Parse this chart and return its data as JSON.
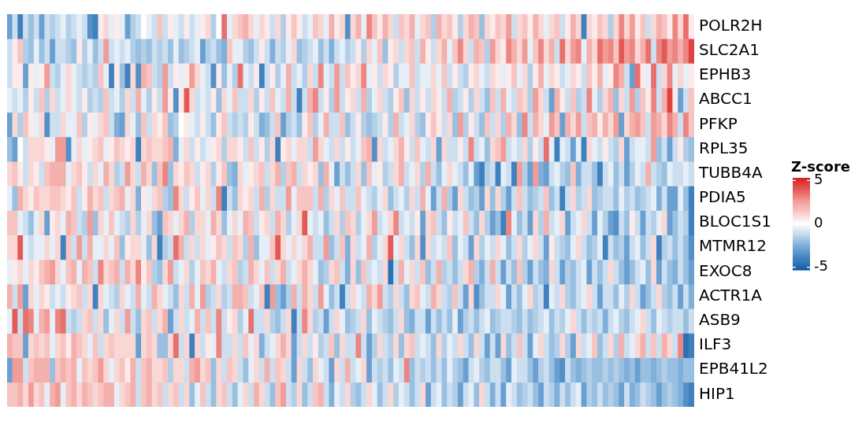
{
  "chart_data": {
    "type": "heatmap",
    "clabel": "Z-score",
    "clim": [
      -5.3,
      5.3
    ],
    "cticks": [
      -5,
      0,
      5
    ],
    "categories": [
      null,
      null,
      null,
      null,
      null,
      null,
      null,
      null,
      null,
      null,
      null,
      null,
      null,
      null,
      null,
      null,
      null,
      null,
      null,
      null,
      null,
      null,
      null,
      null,
      null,
      null,
      null,
      null,
      null,
      null,
      null,
      null,
      null,
      null,
      null,
      null,
      null,
      null,
      null,
      null,
      null,
      null,
      null,
      null,
      null,
      null,
      null,
      null,
      null,
      null,
      null,
      null,
      null,
      null,
      null,
      null,
      null,
      null,
      null,
      null,
      null,
      null,
      null,
      null,
      null,
      null,
      null,
      null,
      null,
      null,
      null,
      null,
      null,
      null,
      null,
      null,
      null,
      null,
      null,
      null,
      null,
      null,
      null,
      null,
      null,
      null,
      null,
      null,
      null,
      null,
      null,
      null,
      null,
      null,
      null,
      null,
      null,
      null,
      null,
      null,
      null,
      null,
      null,
      null,
      null,
      null,
      null,
      null,
      null,
      null,
      null,
      null,
      null,
      null,
      null,
      null,
      null,
      null,
      null,
      null,
      null,
      null,
      null,
      null,
      null,
      null,
      null,
      null
    ],
    "y_categories": [
      "POLR2H",
      "SLC2A1",
      "EPHB3",
      "ABCC1",
      "PFKP",
      "RPL35",
      "TUBB4A",
      "PDIA5",
      "BLOC1S1",
      "MTMR12",
      "EXOC8",
      "ACTR1A",
      "ASB9",
      "ILF3",
      "EPB41L2",
      "HIP1"
    ],
    "cells": [
      [
        -3,
        -1,
        -4,
        -1,
        -2,
        -1,
        -3,
        -1,
        -1.5,
        -1,
        -0.5,
        -1.5,
        -1,
        -0.5,
        -1,
        -3.5,
        -4,
        0.5,
        1,
        -0.5,
        0.5,
        -0.5,
        -3,
        -1.5,
        -1,
        0,
        -0.5,
        -1,
        1.5,
        -1,
        0.5,
        -0.5,
        -1,
        0.5,
        -1,
        -0.5,
        0.5,
        1,
        -1.5,
        0,
        3.5,
        -0.5,
        1,
        1.5,
        2,
        1,
        -0.5,
        1,
        0.5,
        -1,
        1,
        -1.5,
        0.5,
        1.5,
        0.5,
        -1,
        -0.5,
        1.5,
        1,
        -0.5,
        2,
        0.5,
        1,
        -3.5,
        1,
        2,
        -0.5,
        3,
        1.5,
        0.5,
        2,
        1,
        -1,
        1.5,
        1,
        2,
        -0.5,
        1,
        1.5,
        -1.5,
        2,
        1,
        1.5,
        0.5,
        -1.5,
        1,
        2,
        1.5,
        -2,
        1,
        0.5,
        1.5,
        1,
        2.5,
        -1,
        1,
        1.5,
        0.5,
        2,
        1,
        -0.5,
        1,
        1.5,
        -1,
        0.5,
        2,
        1,
        -4,
        1,
        0.5,
        1.5,
        1,
        -1.5,
        1,
        3,
        1,
        2.5,
        0.5,
        1.5,
        -1,
        1,
        2,
        1.5,
        0.5,
        3,
        1,
        3.5,
        0.5
      ],
      [
        -1,
        0.5,
        1.5,
        -1.5,
        -2,
        -0.5,
        -2,
        -1,
        -3,
        -1,
        -1,
        -1.5,
        -2,
        0.5,
        -1.5,
        -0.5,
        -2,
        -1,
        2.5,
        -1,
        -0.5,
        -1,
        -0.5,
        -1.5,
        -2,
        -1.5,
        -2,
        -1,
        -1.5,
        -1,
        -2,
        -0.5,
        -2,
        -1.5,
        -1,
        -0.5,
        -3,
        -1.5,
        -1,
        -2,
        -2.5,
        1.5,
        -0.5,
        -0.5,
        -1.5,
        -2,
        -1,
        0.5,
        -1,
        -2.5,
        -1,
        -1.5,
        -0.5,
        1,
        -2,
        -1.5,
        -1,
        -0.5,
        -2,
        -1,
        -2.5,
        -1,
        -0.5,
        -1.5,
        -1,
        0.5,
        -1.5,
        1,
        -0.5,
        1.5,
        -2,
        0.5,
        1,
        -1,
        1,
        1.5,
        -1,
        2,
        0.5,
        -1,
        1,
        2,
        -0.5,
        1.5,
        3,
        1,
        -1,
        2,
        1.5,
        -1.5,
        2.5,
        1,
        0.5,
        3,
        2,
        1,
        2.5,
        -0.5,
        1.5,
        3,
        1,
        2,
        -1,
        3.5,
        1,
        2.5,
        3,
        -0.5,
        2,
        1,
        3.5,
        2.5,
        3,
        1.5,
        4,
        2.5,
        3,
        1,
        2,
        3.5,
        -1,
        3,
        4,
        2.5,
        3,
        2,
        3,
        4.5
      ],
      [
        -1,
        0.5,
        0.5,
        -3,
        0.5,
        -0.5,
        0.5,
        2.5,
        -1,
        -1.5,
        -0.5,
        1,
        -0.5,
        -1,
        -1.5,
        -1,
        -1.5,
        1.5,
        -0.5,
        -4,
        0.5,
        -2,
        -4,
        1,
        -3.5,
        2,
        1.5,
        -1,
        -1.5,
        2.5,
        -1,
        0.5,
        -0.5,
        0.5,
        2.5,
        1,
        -0.5,
        -1,
        -3.5,
        0.5,
        -2,
        -0.5,
        -1.5,
        3.5,
        -0.5,
        -1,
        0.5,
        -4,
        -1,
        0.5,
        -1.5,
        -0.5,
        2,
        -1,
        -0.5,
        -1.5,
        1,
        -1,
        3,
        -0.5,
        -1,
        2.5,
        -1,
        1.5,
        0.5,
        1,
        3,
        -0.5,
        0.5,
        -1,
        1,
        0.5,
        -1.5,
        -0.5,
        -0.5,
        1.5,
        -1,
        -0.5,
        -0.5,
        1,
        -0.5,
        1.5,
        -1,
        0.5,
        -1,
        -1.5,
        0.5,
        1,
        -0.5,
        -1,
        1,
        0.5,
        -0.5,
        0.5,
        1.5,
        -0.5,
        1,
        -1.5,
        0.5,
        2,
        -0.5,
        1,
        0.5,
        -1,
        -0.5,
        1,
        0.5,
        -1,
        1.5,
        0.5,
        2,
        -0.5,
        0.5,
        3,
        2,
        -1,
        -3,
        3.5,
        0.5,
        -0.5,
        3.5,
        -1,
        1,
        3,
        -0.5,
        1,
        -0.5,
        0.5
      ],
      [
        -0.5,
        -1,
        -0.5,
        -1.5,
        0.5,
        -1,
        1.5,
        -1.5,
        1,
        -1,
        -0.5,
        1,
        -0.5,
        -1,
        0.5,
        -1.5,
        -1,
        -1.5,
        1.5,
        -1,
        -0.5,
        -1.5,
        1,
        -1,
        2,
        -0.5,
        -1.5,
        0.5,
        -1,
        2.5,
        0.5,
        -3.5,
        0.5,
        4,
        1,
        -1,
        -0.5,
        -1,
        0.5,
        -2,
        1,
        -0.5,
        1.5,
        -1,
        -1,
        1,
        -1.5,
        0.5,
        -1,
        1.5,
        -0.5,
        -1,
        2,
        -1,
        -4,
        -1,
        2,
        3,
        -1,
        0.5,
        -1.5,
        2.5,
        -1,
        0.5,
        1,
        -1,
        2,
        -1.5,
        -0.5,
        1,
        -1,
        -1.5,
        0.5,
        1.5,
        -2,
        1,
        -1,
        0.5,
        -1,
        1,
        0.5,
        -1,
        2,
        -1.5,
        -1,
        0.5,
        -1.5,
        1,
        -1,
        -2,
        1.5,
        -1,
        2,
        -0.5,
        -1,
        1.5,
        1,
        -1.5,
        2.5,
        1,
        -1,
        -3,
        2,
        0.5,
        -1,
        1.5,
        -1.5,
        -1,
        3,
        -0.5,
        -1.5,
        1,
        2,
        -2,
        1,
        -1,
        2.5,
        -1.5,
        1.5,
        0.5,
        3,
        -1,
        2,
        4.5,
        0.5,
        -3,
        -1,
        1.5
      ],
      [
        -3,
        1,
        -1.5,
        1.5,
        0.5,
        -0.5,
        1,
        -3.5,
        -1,
        -1,
        1,
        -0.5,
        -0.5,
        1.5,
        -1.5,
        0.5,
        -0.5,
        1,
        1.5,
        -1,
        -2.5,
        -3,
        1,
        -0.5,
        -2,
        1.5,
        -1,
        1,
        0.5,
        1.5,
        -2,
        -1.5,
        0,
        0.5,
        -0.5,
        -1,
        0.5,
        -1,
        -2,
        0.5,
        1.5,
        -1,
        -1.5,
        -1,
        -1.5,
        0.5,
        -1,
        -2.5,
        -2,
        -1,
        1.5,
        -3,
        -1.5,
        -1,
        -2,
        0.5,
        1.5,
        -1.5,
        -0.5,
        2,
        -1,
        -1,
        1.5,
        -2,
        -1,
        0.5,
        -1.5,
        -2,
        -1.5,
        -1,
        0.5,
        -1.5,
        2,
        -1,
        -0.5,
        1,
        -1.5,
        -2,
        0.5,
        1.5,
        0.5,
        -1,
        1,
        -2,
        2.5,
        -1.5,
        0.5,
        -1,
        -2,
        1.5,
        -1,
        1,
        -1.5,
        2,
        1,
        -2,
        3,
        -1,
        2,
        1,
        -0.5,
        2.5,
        1.5,
        -3,
        2,
        1,
        2.5,
        -1,
        1.5,
        2,
        0.5,
        2,
        1,
        2.5,
        -3,
        1,
        2,
        2.5,
        1.5,
        -1,
        2.5,
        2,
        1,
        3,
        2,
        -1,
        3,
        1.5
      ],
      [
        -2,
        -3,
        0,
        -1,
        1,
        1,
        1,
        0.5,
        -0.5,
        2.5,
        2.5,
        -3.5,
        -0.5,
        1,
        -0.5,
        0.5,
        1,
        1.5,
        -0.5,
        0.5,
        1.5,
        1,
        0.5,
        1,
        -4,
        1,
        1.5,
        1,
        1,
        1.5,
        2,
        -2.5,
        -0.5,
        1,
        -1,
        0.5,
        -1,
        -0.5,
        0.5,
        1,
        -1.5,
        1,
        1,
        0.5,
        -1,
        1.5,
        -1,
        0.5,
        -1.5,
        1,
        -4,
        0.5,
        1,
        -0.5,
        1,
        1,
        -1,
        2.5,
        1,
        -0.5,
        -1,
        1,
        -1,
        0.5,
        -1,
        -0.5,
        1.5,
        2,
        -3.5,
        1,
        -1,
        -0.5,
        1,
        2,
        0.5,
        -1,
        1.5,
        -0.5,
        -1,
        1,
        -3,
        1,
        -1,
        -1,
        0.5,
        -1,
        3,
        -1,
        -0.5,
        -2,
        1,
        1.5,
        2.5,
        -1,
        -0.5,
        -1,
        1,
        -1.5,
        0.5,
        -1,
        3.5,
        -0.5,
        -4,
        -0.5,
        -1,
        -3,
        -0.5,
        -4,
        1,
        -0.5,
        -1,
        0.5,
        -1,
        -1.5,
        1,
        -3,
        -1,
        -0.5,
        -0.5,
        -1,
        2.5,
        -2,
        -1,
        -3,
        -1,
        0.5,
        -1.5,
        -2
      ],
      [
        1,
        1.5,
        0.5,
        -1,
        1,
        0.5,
        -1,
        1.5,
        2,
        2,
        2,
        -0.5,
        1,
        1.5,
        0.5,
        -1,
        1,
        -0.5,
        2,
        1,
        -1.5,
        -1,
        2.5,
        1,
        -1,
        2,
        1,
        -2,
        1.5,
        3,
        -2,
        1,
        0.5,
        1.5,
        1,
        -1,
        0.5,
        1,
        -1.5,
        0.5,
        1.5,
        -2,
        -2.5,
        1,
        -0.5,
        0.5,
        1,
        1.5,
        -1,
        1,
        2,
        -1.5,
        1.5,
        2,
        -1,
        1,
        0.5,
        1,
        -2,
        2,
        -0.5,
        -3,
        -1,
        -2,
        -1,
        1,
        -2,
        1.5,
        -0.5,
        0.5,
        -1.5,
        -1,
        1,
        2,
        -1,
        -0.5,
        1,
        -1.5,
        2,
        -1,
        -2,
        -0.5,
        1,
        -0.5,
        -1,
        -2,
        -0.5,
        -3,
        -4,
        -1.5,
        -1,
        -4,
        -0.5,
        -1,
        -4,
        2.5,
        -1.5,
        -3,
        2.5,
        -2.5,
        -3,
        -1,
        -0.5,
        -1.5,
        -2,
        1.5,
        -2.5,
        -1,
        -1,
        -2,
        -4,
        -1,
        -0.5,
        -2,
        -1,
        -3,
        -1.5,
        -0.5,
        -1,
        2,
        -1,
        -1.5,
        -2,
        -0.5,
        -1,
        -1,
        -0.5,
        -1
      ],
      [
        -0.5,
        -2,
        2,
        1,
        0.5,
        1.5,
        1,
        1,
        1.5,
        1.5,
        1,
        0.5,
        1.5,
        -1,
        0.5,
        2,
        1,
        1.5,
        -1,
        1,
        1.5,
        2,
        -0.5,
        1,
        -2.5,
        0.5,
        -0.5,
        1,
        1.5,
        -1.5,
        -2,
        3,
        1,
        -1,
        0.5,
        1.5,
        -0.5,
        1,
        -1,
        3,
        -4,
        -1,
        -2,
        1,
        0.5,
        1,
        -1,
        2,
        -1.5,
        1,
        -1,
        -1,
        2.5,
        -0.5,
        1.5,
        1.5,
        1.5,
        -1,
        2,
        -1.5,
        1,
        -0.5,
        1.5,
        -1,
        -1,
        1.5,
        -0.5,
        -1,
        -1.5,
        -0.5,
        1,
        -2,
        -1,
        -0.5,
        -1.5,
        1,
        -1,
        2,
        -0.5,
        -3,
        -1,
        2,
        -1.5,
        -3,
        1,
        -1,
        -2,
        -1.5,
        -3,
        1,
        -2,
        1,
        -1.5,
        -3,
        -1,
        1.5,
        -1,
        -2,
        -1.5,
        -1,
        1.5,
        -2,
        -1,
        -4,
        -1,
        1,
        -1.5,
        -1,
        1,
        -2,
        -1.5,
        -1,
        -1,
        -2,
        -0.5,
        -1.5,
        -1,
        -2,
        -1.5,
        -1,
        -0.5,
        -2.5,
        -1,
        -3,
        -3,
        -0.5,
        -2,
        -4
      ],
      [
        1.5,
        1.5,
        -0.5,
        -1,
        -2,
        -0.5,
        1,
        -3,
        0.5,
        1,
        -0.5,
        2,
        1.5,
        -1,
        -1.5,
        2.5,
        -2,
        1,
        -0.5,
        1.5,
        -0.5,
        -1,
        -1.5,
        1,
        -1.5,
        -0.5,
        1,
        -2,
        -3,
        1.5,
        1,
        -0.5,
        1,
        2,
        -1.5,
        1,
        1,
        -0.5,
        2,
        1,
        -2,
        -0.5,
        1,
        -0.5,
        2,
        1.5,
        -1,
        0.5,
        1,
        -1,
        2,
        1,
        -1.5,
        -0.5,
        1,
        4,
        -0.5,
        -1,
        -0.5,
        -2,
        -1,
        1,
        -1.5,
        1.5,
        1,
        -1.5,
        -0.5,
        1,
        2.5,
        -1,
        -0.5,
        1,
        3,
        -1,
        -0.5,
        -1,
        0.5,
        -3,
        1,
        1.5,
        -1,
        -2,
        0.5,
        -1,
        -0.5,
        1.5,
        -1,
        -2,
        1,
        -1.5,
        -3,
        -2,
        -4,
        3,
        -0.5,
        -2,
        -1,
        -3,
        1,
        -1.5,
        2,
        -1,
        -0.5,
        1,
        -3,
        -1,
        -0.5,
        1,
        -1,
        -3,
        -0.5,
        -1.5,
        -3,
        -3.5,
        -1,
        -2,
        0.5,
        -1,
        -3,
        -1,
        -1.5,
        -0.5,
        1,
        -3,
        -2,
        -1,
        -1.5,
        -4
      ],
      [
        1,
        1,
        4,
        -0.5,
        -1,
        -0.5,
        -0.5,
        1,
        -0.5,
        1,
        -4,
        1.5,
        -1,
        2.5,
        -1,
        2,
        -0.5,
        -0.5,
        1,
        -0.5,
        1.5,
        -2,
        0.5,
        1,
        1,
        -0.5,
        -2,
        1,
        -4,
        -1.5,
        -1,
        3.5,
        2,
        -1,
        1,
        -1,
        1,
        -0.5,
        0.5,
        1.5,
        1,
        -1,
        1.5,
        1,
        -1.5,
        2,
        -2,
        -0.5,
        -0.5,
        1.5,
        4,
        1,
        -0.5,
        1,
        -0.5,
        1,
        2,
        -1,
        -1,
        2.5,
        -2,
        -1,
        1.5,
        -2.5,
        1,
        -1,
        -0.5,
        2,
        -1.5,
        -0.5,
        1,
        4,
        -0.5,
        1,
        -1,
        -2,
        1,
        -3.5,
        1,
        -1,
        -0.5,
        -1,
        1.5,
        -2,
        -0.5,
        -1,
        -3,
        1,
        -1.5,
        -0.5,
        -1,
        1,
        -0.5,
        -2,
        -1,
        1,
        -1.5,
        -0.5,
        1,
        -1,
        -3,
        0.5,
        -1,
        -1.5,
        -2,
        -0.5,
        1,
        -1,
        -2,
        -1.5,
        -0.5,
        -4,
        -1,
        -2,
        -1.5,
        -3,
        -1,
        -0.5,
        -2,
        -1,
        1,
        -4,
        -1.5,
        -1,
        -2,
        -1,
        -2,
        -3.5
      ],
      [
        -0.5,
        0.5,
        1,
        -0.5,
        1,
        0.5,
        1.5,
        2,
        2.5,
        1,
        -0.5,
        1.5,
        2,
        -0.5,
        2,
        1.5,
        -1,
        3,
        1,
        1.5,
        2,
        -1,
        2,
        1,
        3,
        0.5,
        1.5,
        -1.5,
        -2,
        1,
        2.5,
        -1,
        -0.5,
        1,
        -1.5,
        -0.5,
        1.5,
        1,
        2,
        -0.5,
        -1,
        1,
        1.5,
        -1.5,
        -1,
        2,
        1,
        -0.5,
        1.5,
        -1,
        1,
        2,
        -1,
        -0.5,
        1,
        2,
        1,
        -0.5,
        -2,
        -1.5,
        1,
        1.5,
        -1,
        -2.5,
        1,
        -2,
        1.5,
        -1,
        -0.5,
        -1,
        1,
        -4.5,
        -1,
        2,
        -0.5,
        1,
        -1,
        1.5,
        -2,
        -1,
        2,
        -1.5,
        -1,
        -2,
        -1,
        1,
        2,
        -1.5,
        -2.5,
        -1,
        2,
        -1,
        -3,
        -1,
        -2,
        1.5,
        -1.5,
        -3,
        -1,
        -2,
        -2.5,
        1,
        -1,
        -3,
        -1.5,
        -2,
        -1,
        -0.5,
        -3,
        -1,
        -2,
        -1,
        1,
        -1,
        -2,
        -3,
        -2,
        -1,
        -0.5,
        -2,
        1,
        -3,
        -1,
        -2,
        -2.5,
        -1,
        -2,
        -3
      ],
      [
        2,
        -1,
        2.5,
        -3,
        1,
        -0.5,
        1,
        0.5,
        -1,
        -0.5,
        -1,
        0.5,
        1,
        1.5,
        -1,
        1,
        -4,
        1,
        -0.5,
        -1,
        -1.5,
        1,
        -0.5,
        -1,
        2,
        -0.5,
        -1,
        2,
        1,
        -0.5,
        -1,
        -2,
        1,
        -1,
        2,
        -0.5,
        2.5,
        -1.5,
        -1,
        1,
        -1.5,
        -1,
        2,
        2,
        1.5,
        -1,
        -0.5,
        1.5,
        -4,
        2.5,
        -2,
        -3,
        -1.5,
        2,
        -1,
        2,
        1,
        -1,
        2.5,
        -0.5,
        -2,
        -1,
        -4,
        -1,
        1,
        -0.5,
        -1,
        2,
        1,
        2.5,
        -1,
        -1.5,
        1,
        -1,
        -2,
        1,
        1.5,
        -0.5,
        -1,
        2,
        1,
        -1,
        -1.5,
        1.5,
        -1,
        -3,
        1,
        -3.5,
        -2,
        -1,
        -1,
        1,
        -0.5,
        -3,
        -1,
        -2,
        -0.5,
        1,
        -1.5,
        -1,
        -4,
        -0.5,
        -1,
        1,
        -1.5,
        -2,
        -1,
        -0.5,
        1,
        -1,
        -3,
        -1,
        -1,
        -2,
        -0.5,
        -1.5,
        1,
        -1,
        -3,
        -2,
        -1,
        1,
        -1.5,
        -2,
        -1,
        -3,
        -1,
        -2.5
      ],
      [
        -0.5,
        4,
        -1,
        3.5,
        3,
        -0.5,
        2,
        2.5,
        -0.5,
        3,
        3.5,
        -1,
        -1.5,
        -1,
        1,
        1.5,
        -1,
        1,
        -2,
        -0.5,
        1,
        -1,
        2.5,
        -1,
        -2,
        1,
        1.5,
        -1,
        1,
        2,
        -3,
        -1,
        1,
        -1,
        -0.5,
        2,
        -1,
        1.5,
        -1,
        3,
        -1,
        0.5,
        1,
        -1.5,
        -0.5,
        3.5,
        -1,
        -1,
        1,
        -1.5,
        -2,
        -1,
        1,
        -4,
        -1,
        3,
        1,
        -1.5,
        -1,
        -3,
        -1,
        1,
        -0.5,
        -2,
        -1.5,
        -1,
        1,
        -2,
        -0.5,
        -1,
        -1.5,
        -2,
        -1,
        1,
        -2,
        -2.5,
        -1,
        -1,
        -3,
        -1,
        -2,
        -1,
        -2,
        -0.5,
        -3,
        -1.5,
        -1,
        -2,
        -1,
        -0.5,
        -2,
        -1.5,
        -1,
        -1,
        -1.5,
        -2,
        -1,
        -2,
        -1.5,
        -1,
        -0.5,
        -2,
        -1,
        -1.5,
        -0.5,
        1,
        -1,
        -2,
        -1,
        -1.5,
        -1,
        -2.5,
        -1,
        -0.5,
        -1.5,
        -2,
        -1,
        -0.5,
        1,
        -1,
        -2,
        -0.5,
        -1,
        -1.5,
        -1,
        -1,
        -2,
        -1
      ],
      [
        2,
        1.5,
        1.5,
        -3,
        1,
        1.5,
        1,
        1.5,
        -0.5,
        1,
        1.5,
        0.5,
        2,
        1.5,
        1,
        -0.5,
        1.5,
        -1,
        1,
        1.5,
        1,
        1,
        1,
        1,
        -3,
        1,
        1.5,
        1,
        -2,
        -2,
        1,
        3.5,
        -1,
        1,
        -4,
        1,
        -1,
        0.5,
        -0.5,
        3,
        -1,
        -1,
        1,
        -1,
        1.5,
        -0.5,
        1,
        -2.5,
        -1,
        -0.5,
        1,
        2,
        1,
        -3,
        -1,
        1,
        -1,
        0.5,
        -1.5,
        -1,
        1.5,
        -2,
        1,
        -1,
        -1,
        3,
        -1,
        -3,
        -1.5,
        1,
        -1,
        -1.5,
        1,
        -2,
        1,
        1.5,
        -1,
        -0.5,
        -1,
        -2,
        1,
        -1.5,
        -0.5,
        -1,
        1,
        -1,
        -2,
        1,
        -1,
        -3,
        -1,
        -3,
        1,
        -2,
        -1,
        1.5,
        -1,
        -3,
        -0.5,
        1,
        -1,
        -2,
        -1.5,
        1,
        -1.5,
        -3,
        1,
        -1,
        -0.5,
        1.5,
        -2,
        -1,
        1,
        -1.5,
        2,
        -1,
        -0.5,
        1,
        2,
        -1,
        1.5,
        -1,
        2,
        1,
        -1,
        3,
        -4.5,
        -4
      ],
      [
        -3,
        2.5,
        2.5,
        -1,
        1.5,
        2,
        2,
        2,
        -2,
        1.5,
        2,
        1.5,
        2,
        -0.5,
        1.5,
        1,
        1.5,
        2.5,
        1,
        -0.5,
        1,
        1.5,
        0.5,
        2,
        -1,
        1.5,
        2,
        1,
        1,
        1.5,
        -1.5,
        1,
        1,
        -1,
        2,
        2.5,
        1,
        1.5,
        -2,
        1,
        -1,
        1.5,
        1,
        -1,
        -2,
        -0.5,
        1,
        -1,
        2,
        -1,
        1.5,
        1,
        -1,
        -3,
        1,
        -1,
        -2,
        1,
        -0.5,
        -1,
        -3,
        1,
        -1,
        2,
        -1,
        -0.5,
        1,
        -3,
        -1,
        -1.5,
        -1,
        -2,
        -0.5,
        -1,
        3,
        -2,
        -1,
        -1.5,
        -1,
        -2,
        -1,
        -2,
        -0.5,
        -1.5,
        -2,
        -3,
        -1,
        -0.5,
        -1.5,
        -2,
        -1,
        -1,
        -2,
        -3,
        -0.5,
        -1,
        -1,
        -2,
        -3,
        -1.5,
        -1,
        -2,
        -3,
        -3.5,
        -1,
        -2,
        -2.5,
        -2,
        -1.5,
        -2,
        -2,
        -1.5,
        -2,
        -1.5,
        -2,
        -2.5,
        -2,
        -3,
        -2,
        -2,
        -2.5,
        -2,
        -1.5,
        -2,
        -2,
        -2.5,
        -2,
        -2
      ],
      [
        1.5,
        1.5,
        2,
        1,
        2.5,
        1,
        1.5,
        -0.5,
        2,
        2.5,
        -0.5,
        1.5,
        2,
        1,
        2,
        1.5,
        1,
        1.5,
        2,
        2,
        -0.5,
        1,
        1.5,
        2,
        -1,
        1.5,
        2,
        1,
        1.5,
        -1,
        1,
        1.5,
        -1,
        1,
        -2,
        -0.5,
        1.5,
        -1,
        -2,
        1,
        1.5,
        -1,
        -2,
        -0.5,
        1,
        -1,
        2,
        1,
        -1,
        -2,
        1.5,
        2.5,
        -1,
        -1.5,
        1,
        -2,
        -1,
        1.5,
        2,
        -1,
        -2.5,
        -0.5,
        -1,
        1,
        -1.5,
        -2,
        -1,
        1,
        -0.5,
        -2,
        -1,
        1,
        -1.5,
        -0.5,
        -1,
        -2,
        -1,
        1,
        -3,
        -1,
        -0.5,
        -2,
        -1,
        -1.5,
        -3,
        -1,
        -0.5,
        -2,
        1,
        -1,
        -2.5,
        -1,
        -3,
        -0.5,
        -1,
        -2,
        -1.5,
        -1,
        -2,
        -3,
        -1,
        -1.5,
        -2.5,
        -1,
        -2,
        -1,
        -0.5,
        -3,
        -1.5,
        -2,
        -1,
        -2,
        -1.5,
        -2,
        -3,
        -1,
        -2.5,
        -2,
        -1,
        -1.5,
        -2,
        -3,
        -2,
        -1.5,
        -2,
        -2.5,
        -3.5,
        -4
      ]
    ]
  }
}
